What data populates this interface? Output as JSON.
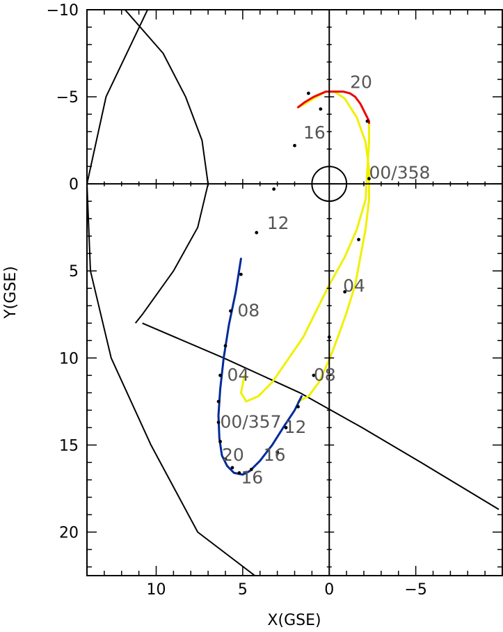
{
  "chart_data": {
    "type": "line",
    "title": "",
    "xlabel": "X(GSE)",
    "ylabel": "Y(GSE)",
    "xlim": [
      14,
      -10
    ],
    "ylim": [
      -10,
      22.5
    ],
    "grid": false,
    "x_major_ticks": [
      10,
      5,
      0,
      -5
    ],
    "x_tick_labels": [
      "10",
      "5",
      "0",
      "−5"
    ],
    "y_major_ticks": [
      -10,
      -5,
      0,
      5,
      10,
      15,
      20
    ],
    "y_tick_labels": [
      "−10",
      "−5",
      "0",
      "5",
      "10",
      "15",
      "20"
    ],
    "colors": {
      "yellow": "#f0f000",
      "red": "#ee0000",
      "blue": "#002a9a",
      "black": "#000000"
    },
    "boundaries": [
      {
        "x": [
          11.8,
          9.6,
          8.3,
          7.35,
          7.0,
          7.6,
          9.0,
          10.8,
          11.2
        ]
      },
      {
        "x": [
          10.5,
          12.9,
          14.0,
          13.8,
          12.6,
          10.3,
          7.6,
          4.3
        ]
      },
      {
        "x": [
          10.8,
          6.1,
          1.7,
          -1.9,
          -5.3,
          -9.8
        ]
      }
    ],
    "earth": {
      "x": 0,
      "y": 0,
      "radius": 1
    },
    "trajectory_1": {
      "segments": [
        {
          "color": "yellow",
          "x": [
            1.8,
            1.2,
            0.6,
            0.0,
            -0.5,
            -1.0,
            -1.5,
            -1.8,
            -2.1,
            -2.3,
            -2.3,
            -2.1,
            -1.6,
            -0.9,
            -0.3,
            0.2,
            0.9,
            1.4,
            1.8
          ],
          "y": [
            12.5,
            12.2,
            11.4,
            10.1,
            8.8,
            7.4,
            5.8,
            4.2,
            2.6,
            0.9,
            -0.8,
            -2.4,
            -3.8,
            -4.9,
            -5.3,
            -5.3,
            -4.9,
            -4.6,
            -4.4
          ]
        },
        {
          "color": "red",
          "x": [
            1.8,
            1.4,
            0.9,
            0.2,
            -0.3,
            -0.8,
            -1.2,
            -1.5,
            -1.8,
            -2.0,
            -2.3,
            -2.3
          ],
          "y": [
            -4.4,
            -4.7,
            -5.0,
            -5.3,
            -5.3,
            -5.3,
            -5.2,
            -5.0,
            -4.6,
            -4.2,
            -3.6,
            -3.4
          ]
        },
        {
          "color": "yellow",
          "x": [
            -2.3,
            -2.3,
            -2.2,
            -2.1,
            -1.6,
            -0.9,
            0.0,
            0.8,
            1.5,
            2.4,
            3.3,
            4.1,
            4.8,
            5.1,
            4.9
          ],
          "y": [
            -3.4,
            -2.4,
            -0.8,
            0.9,
            2.6,
            4.2,
            5.8,
            7.4,
            8.8,
            10.1,
            11.4,
            12.2,
            12.5,
            12.0,
            11.0
          ]
        }
      ],
      "markers": [
        {
          "x": 1.2,
          "y": -5.2
        },
        {
          "x": -2.2,
          "y": -3.6
        },
        {
          "x": -2.3,
          "y": -0.3
        },
        {
          "x": -1.7,
          "y": 3.2
        },
        {
          "x": -0.9,
          "y": 6.2
        },
        {
          "x": 0.0,
          "y": 8.8
        },
        {
          "x": 0.9,
          "y": 11.0
        },
        {
          "x": 4.2,
          "y": 2.8
        },
        {
          "x": 3.2,
          "y": 0.3
        },
        {
          "x": 2.0,
          "y": -2.2
        },
        {
          "x": 0.5,
          "y": -4.3
        }
      ]
    },
    "trajectory_2": {
      "segments": [
        {
          "color": "blue",
          "x": [
            5.1,
            5.4,
            5.8,
            6.1,
            6.3,
            6.4,
            6.35,
            6.2,
            5.9,
            5.5,
            5.0,
            4.6,
            4.0,
            3.3,
            2.6,
            2.0,
            1.6
          ],
          "y": [
            4.3,
            6.2,
            8.1,
            10.0,
            11.8,
            13.3,
            14.6,
            15.6,
            16.2,
            16.6,
            16.7,
            16.5,
            15.9,
            15.0,
            13.9,
            13.0,
            12.2
          ]
        }
      ],
      "markers": [
        {
          "x": 5.1,
          "y": 5.2
        },
        {
          "x": 5.7,
          "y": 7.3
        },
        {
          "x": 6.0,
          "y": 9.3
        },
        {
          "x": 6.3,
          "y": 11.0
        },
        {
          "x": 6.4,
          "y": 12.5
        },
        {
          "x": 6.4,
          "y": 13.7
        },
        {
          "x": 6.3,
          "y": 14.8
        },
        {
          "x": 6.0,
          "y": 15.8
        },
        {
          "x": 5.6,
          "y": 16.3
        },
        {
          "x": 5.2,
          "y": 16.6
        },
        {
          "x": 4.5,
          "y": 16.4
        },
        {
          "x": 3.0,
          "y": 15.4
        },
        {
          "x": 2.5,
          "y": 14.0
        },
        {
          "x": 1.8,
          "y": 12.8
        }
      ]
    },
    "annotations": [
      {
        "text": "20",
        "x": -1.2,
        "y": -5.5
      },
      {
        "text": "16",
        "x": 1.5,
        "y": -2.6
      },
      {
        "text": "00/358",
        "x": -2.3,
        "y": -0.3
      },
      {
        "text": "12",
        "x": 3.6,
        "y": 2.6
      },
      {
        "text": "04",
        "x": -0.8,
        "y": 6.2
      },
      {
        "text": "08",
        "x": 5.3,
        "y": 7.6
      },
      {
        "text": "04",
        "x": 5.9,
        "y": 11.3
      },
      {
        "text": "08",
        "x": 0.9,
        "y": 11.3
      },
      {
        "text": "00/357",
        "x": 6.3,
        "y": 14.0
      },
      {
        "text": "12",
        "x": 2.6,
        "y": 14.3
      },
      {
        "text": "20",
        "x": 6.2,
        "y": 15.9
      },
      {
        "text": "16",
        "x": 3.8,
        "y": 15.9
      },
      {
        "text": "16",
        "x": 5.1,
        "y": 17.2
      }
    ]
  }
}
